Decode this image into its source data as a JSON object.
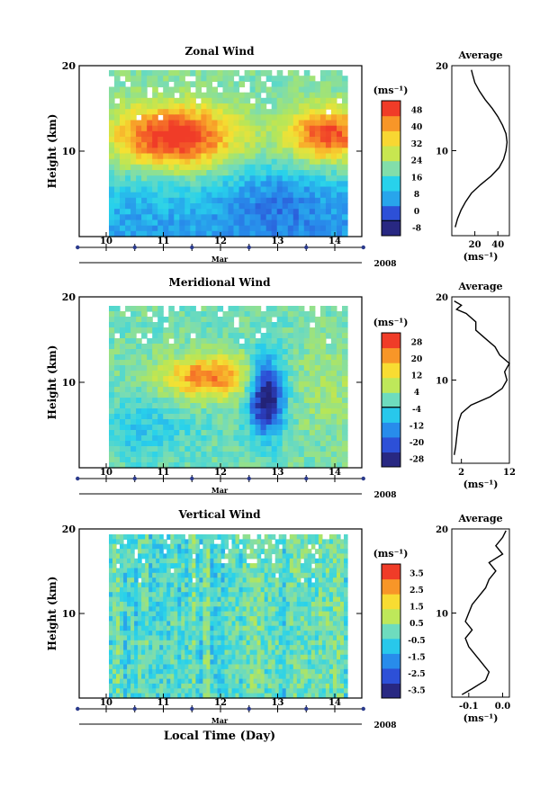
{
  "figure": {
    "height_label": "Height (km)",
    "month_label": "Mar",
    "year_label": "2008",
    "time_label": "Local Time (Day)",
    "average_title": "Average",
    "unit_label": "(ms⁻¹)"
  },
  "chart_data": [
    {
      "type": "heatmap",
      "title": "Zonal Wind",
      "ylabel": "Height (km)",
      "xlabel": "Local Time (Day)",
      "x_ticks": [
        "10",
        "11",
        "12",
        "13",
        "14"
      ],
      "x_range": [
        9.5,
        14.45
      ],
      "y_ticks": [
        "10",
        "20"
      ],
      "ylim": [
        0,
        20
      ],
      "colorbar": {
        "unit": "(ms⁻¹)",
        "ticks": [
          "-8",
          "0",
          "8",
          "16",
          "24",
          "32",
          "40",
          "48"
        ],
        "range": [
          -8,
          52
        ],
        "contour_at": 0
      },
      "average_profile": {
        "title": "Average",
        "x_ticks": [
          "20",
          "40"
        ],
        "xlim": [
          0,
          50
        ],
        "xlabel": "(ms⁻¹)",
        "y_ticks": [
          "10",
          "20"
        ],
        "points": [
          [
            3,
            1
          ],
          [
            5,
            2
          ],
          [
            8,
            3
          ],
          [
            12,
            4
          ],
          [
            17,
            5
          ],
          [
            25,
            6
          ],
          [
            34,
            7
          ],
          [
            41,
            8
          ],
          [
            45,
            9
          ],
          [
            47,
            10
          ],
          [
            48,
            11
          ],
          [
            47,
            12
          ],
          [
            44,
            13
          ],
          [
            40,
            14
          ],
          [
            35,
            15
          ],
          [
            29,
            16
          ],
          [
            24,
            17
          ],
          [
            20,
            18
          ],
          [
            18,
            19
          ],
          [
            17,
            19.5
          ]
        ]
      }
    },
    {
      "type": "heatmap",
      "title": "Meridional Wind",
      "ylabel": "Height (km)",
      "xlabel": "Local Time (Day)",
      "x_ticks": [
        "10",
        "11",
        "12",
        "13",
        "14"
      ],
      "x_range": [
        9.5,
        14.45
      ],
      "y_ticks": [
        "10",
        "20"
      ],
      "ylim": [
        0,
        20
      ],
      "colorbar": {
        "unit": "(ms⁻¹)",
        "ticks": [
          "-28",
          "-20",
          "-12",
          "-4",
          "4",
          "12",
          "20",
          "28"
        ],
        "range": [
          -32,
          32
        ],
        "contour_at": 0
      },
      "average_profile": {
        "title": "Average",
        "x_ticks": [
          "2",
          "12"
        ],
        "xlim": [
          0,
          12
        ],
        "xlabel": "(ms⁻¹)",
        "y_ticks": [
          "10",
          "20"
        ],
        "points": [
          [
            0.5,
            1
          ],
          [
            0.8,
            2
          ],
          [
            1,
            3
          ],
          [
            1.2,
            4
          ],
          [
            1.4,
            5
          ],
          [
            2,
            6
          ],
          [
            4,
            7
          ],
          [
            8,
            8
          ],
          [
            10.5,
            9
          ],
          [
            11.5,
            10
          ],
          [
            11,
            11
          ],
          [
            12,
            12
          ],
          [
            10,
            13
          ],
          [
            9,
            14
          ],
          [
            7,
            15
          ],
          [
            5,
            16
          ],
          [
            5,
            17
          ],
          [
            3,
            18
          ],
          [
            1,
            18.5
          ],
          [
            2,
            19
          ],
          [
            0.5,
            19.5
          ]
        ]
      }
    },
    {
      "type": "heatmap",
      "title": "Vertical Wind",
      "ylabel": "Height (km)",
      "xlabel": "Local Time (Day)",
      "x_ticks": [
        "10",
        "11",
        "12",
        "13",
        "14"
      ],
      "x_range": [
        9.5,
        14.45
      ],
      "y_ticks": [
        "10",
        "20"
      ],
      "ylim": [
        0,
        20
      ],
      "colorbar": {
        "unit": "(ms⁻¹)",
        "ticks": [
          "-3.5",
          "-2.5",
          "-1.5",
          "-0.5",
          "0.5",
          "1.5",
          "2.5",
          "3.5"
        ],
        "range": [
          -4,
          4
        ]
      },
      "average_profile": {
        "title": "Average",
        "x_ticks": [
          "-0.1",
          "0.0"
        ],
        "xlim": [
          -0.15,
          0.02
        ],
        "xlabel": "(ms⁻¹)",
        "y_ticks": [
          "10",
          "20"
        ],
        "points": [
          [
            -0.12,
            0.3
          ],
          [
            -0.09,
            1
          ],
          [
            -0.05,
            2
          ],
          [
            -0.04,
            3
          ],
          [
            -0.06,
            4
          ],
          [
            -0.08,
            5
          ],
          [
            -0.1,
            6
          ],
          [
            -0.11,
            7
          ],
          [
            -0.09,
            8
          ],
          [
            -0.11,
            9
          ],
          [
            -0.1,
            10
          ],
          [
            -0.09,
            11
          ],
          [
            -0.07,
            12
          ],
          [
            -0.05,
            13
          ],
          [
            -0.04,
            14
          ],
          [
            -0.02,
            15
          ],
          [
            -0.04,
            16
          ],
          [
            0.0,
            17
          ],
          [
            -0.02,
            18
          ],
          [
            0.0,
            19
          ],
          [
            0.01,
            19.8
          ]
        ]
      }
    }
  ]
}
